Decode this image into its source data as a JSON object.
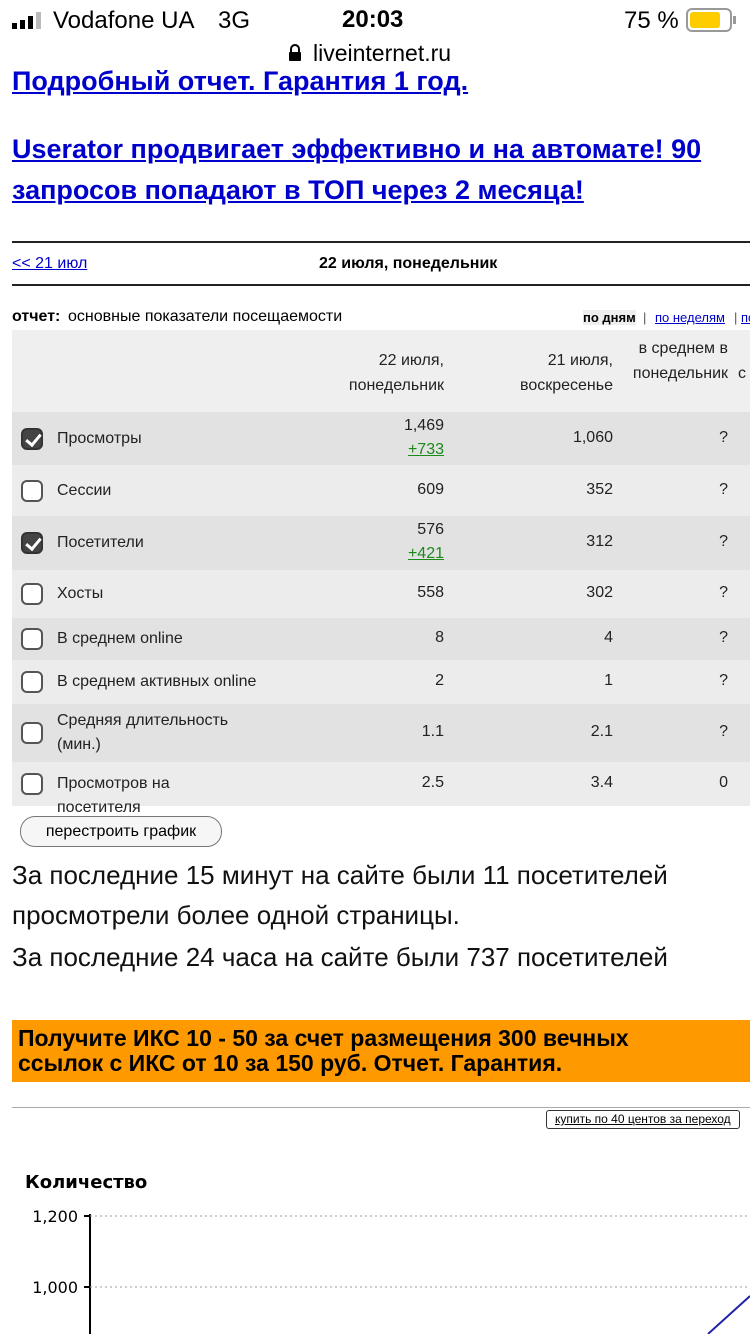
{
  "status_bar": {
    "carrier": "Vodafone UA",
    "network": "3G",
    "time": "20:03",
    "battery": "75 %",
    "url": "liveinternet.ru"
  },
  "ads": [
    "Подробный отчет. Гарантия 1 год.",
    [
      "Userator продвигает эффективно и на автомате! 90",
      "запросов попадают в ТОП через 2 месяца!"
    ]
  ],
  "nav": {
    "prev": "<< 21 июл",
    "current": "22 июля, понедельник"
  },
  "report": {
    "label": "отчет:",
    "name": "основные показатели посещаемости",
    "views": [
      "по дням",
      "по неделям",
      "по"
    ]
  },
  "table": {
    "headers": [
      "22 июля, понедельник",
      "21 июля, воскресенье",
      "в среднем в понедельник",
      "с за"
    ],
    "rows": [
      {
        "name": "Просмотры",
        "checked": true,
        "cols": [
          "1,469",
          "1,060",
          "?"
        ],
        "delta": "+733"
      },
      {
        "name": "Сессии",
        "checked": false,
        "cols": [
          "609",
          "352",
          "?"
        ]
      },
      {
        "name": "Посетители",
        "checked": true,
        "cols": [
          "576",
          "312",
          "?"
        ],
        "delta": "+421"
      },
      {
        "name": "Хосты",
        "checked": false,
        "cols": [
          "558",
          "302",
          "?"
        ]
      },
      {
        "name": "В среднем online",
        "checked": false,
        "cols": [
          "8",
          "4",
          "?"
        ]
      },
      {
        "name": "В среднем активных online",
        "checked": false,
        "cols": [
          "2",
          "1",
          "?"
        ]
      },
      {
        "name": "Средняя длительность (мин.)",
        "checked": false,
        "cols": [
          "1.1",
          "2.1",
          "?"
        ]
      },
      {
        "name": "Просмотров на посетителя",
        "checked": false,
        "cols": [
          "2.5",
          "3.4",
          "0"
        ]
      }
    ]
  },
  "rebuild_button": "перестроить график",
  "info": [
    "За последние 15 минут на сайте были 11 посетителей",
    "просмотрели более одной страницы.",
    "За последние 24 часа на сайте были 737 посетителей"
  ],
  "banner": [
    "Получите ИКС 10 - 50 за счет размещения 300 вечных",
    "ссылок с ИКС от 10 за 150 руб. Отчет. Гарантия."
  ],
  "buy_button": "купить по 40 центов за переход",
  "graph": {
    "ylabel": "Количество",
    "yticks": [
      {
        "value": 1200,
        "label": "1,200"
      },
      {
        "value": 1000,
        "label": "1,000"
      }
    ]
  }
}
